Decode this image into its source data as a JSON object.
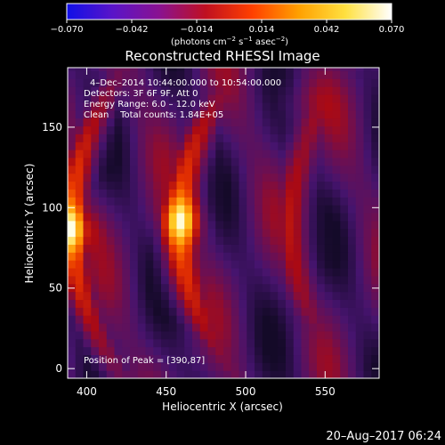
{
  "chart_data": {
    "type": "heatmap",
    "title": "Reconstructed RHESSI Image",
    "xlabel": "Heliocentric X (arcsec)",
    "ylabel": "Heliocentric Y (arcsec)",
    "xlim": [
      388,
      584
    ],
    "ylim": [
      -6,
      187
    ],
    "xticks": [
      400,
      450,
      500,
      550
    ],
    "yticks": [
      0,
      50,
      100,
      150
    ],
    "colorbar": {
      "range": [
        -0.07,
        0.07
      ],
      "ticks": [
        "−0.070",
        "−0.042",
        "−0.014",
        "0.014",
        "0.042",
        "0.070"
      ],
      "label_main": "(photons cm",
      "label_sup1": "−2",
      "label_mid": " s",
      "label_sup2": "−1",
      "label_mid2": " asec",
      "label_sup3": "−2",
      "label_end": ")",
      "colors": [
        "#1010e8",
        "#5a14c8",
        "#8a1290",
        "#c01020",
        "#ff4000",
        "#ffa000",
        "#ffe040",
        "#ffffff"
      ]
    },
    "annotations": {
      "time_range": "4–Dec–2014 10:44:00.000 to 10:54:00.000",
      "detectors": "Detectors: 3F 6F 9F, Att 0",
      "energy": "Energy Range: 6.0 – 12.0 keV",
      "clean": "Clean    Total counts: 1.84E+05",
      "peak": "Position of Peak = [390,87]"
    },
    "peak": [
      390,
      87
    ],
    "arcs": [
      {
        "x_at_90": 390,
        "curvature": 0.0035,
        "amp": 1.0,
        "width": 11
      },
      {
        "x_at_90": 458,
        "curvature": 0.004,
        "amp": 1.0,
        "width": 12
      },
      {
        "x_at_90": 528,
        "curvature": 0.004,
        "amp": 0.75,
        "width": 12
      }
    ],
    "footer_date": "20–Aug–2017 06:24"
  }
}
